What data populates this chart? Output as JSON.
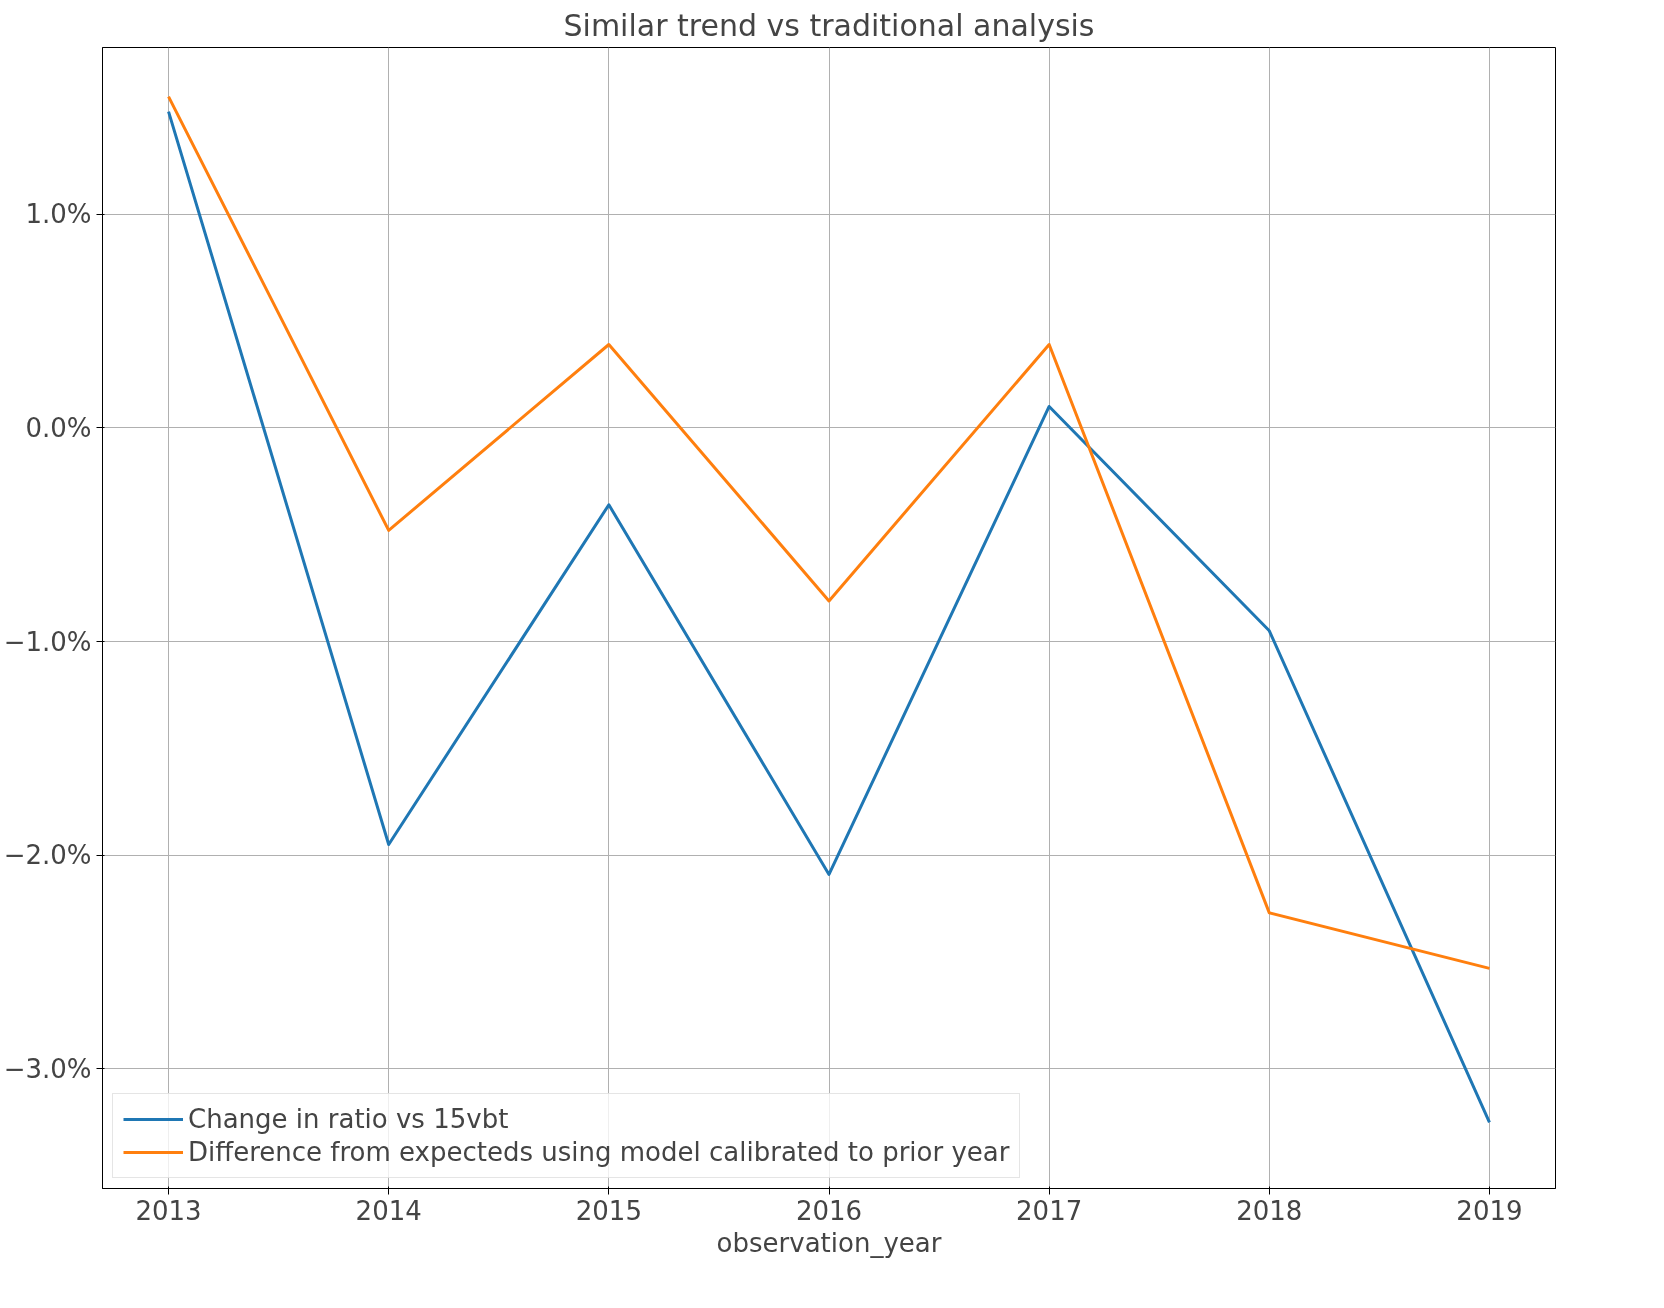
{
  "chart_data": {
    "type": "line",
    "title": "Similar trend vs traditional analysis",
    "xlabel": "observation_year",
    "x": [
      2013,
      2014,
      2015,
      2016,
      2017,
      2018,
      2019
    ],
    "series": [
      {
        "name": "Change in ratio vs 15vbt",
        "color": "#1f77b4",
        "values": [
          1.48,
          -1.95,
          -0.36,
          -2.09,
          0.1,
          -0.95,
          -3.25
        ]
      },
      {
        "name": "Difference from expecteds using model calibrated to prior year",
        "color": "#ff7f0e",
        "values": [
          1.55,
          -0.48,
          0.39,
          -0.81,
          0.39,
          -2.27,
          -2.53
        ]
      }
    ],
    "xlim": [
      2012.7,
      2019.3
    ],
    "xticks": [
      2013,
      2014,
      2015,
      2016,
      2017,
      2018,
      2019
    ],
    "ylim": [
      -3.56,
      1.78
    ],
    "yticks": [
      {
        "value": -3,
        "label": "−3.0%"
      },
      {
        "value": -2,
        "label": "−2.0%"
      },
      {
        "value": -1,
        "label": "−1.0%"
      },
      {
        "value": 0,
        "label": "0.0%"
      },
      {
        "value": 1,
        "label": "1.0%"
      }
    ],
    "grid": true,
    "legend": "bottom left",
    "marker": "none",
    "line_style": "solid"
  }
}
